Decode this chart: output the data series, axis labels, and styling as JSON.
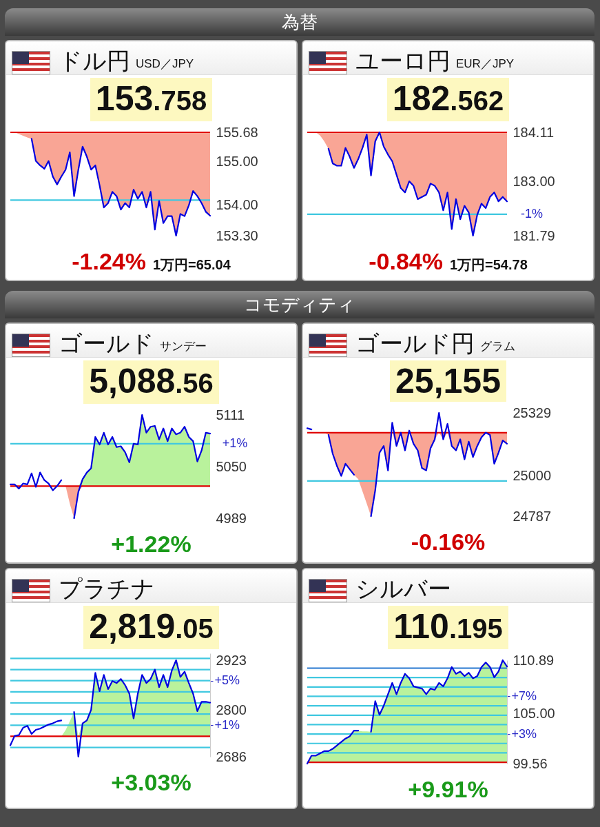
{
  "chart_data": [
    {
      "type": "other",
      "title": "為替"
    },
    {
      "type": "line",
      "title": "ドル円",
      "subtitle": "USD／JPY",
      "annotations": [
        "153.758",
        "-1.24%"
      ],
      "xlabel": "1万円=65.04",
      "categories": [
        null,
        null,
        null,
        null,
        null,
        null,
        null,
        null,
        null,
        null,
        null,
        null,
        null,
        null,
        null,
        null,
        null,
        null,
        null,
        null,
        null,
        null,
        null,
        null,
        null,
        null,
        null,
        null,
        null,
        null,
        null,
        null,
        null,
        null,
        null,
        null,
        null,
        null,
        null,
        null,
        null,
        null,
        null,
        null,
        null,
        null,
        null,
        null
      ],
      "series": [
        {
          "color": "#0000e0",
          "values": [
            null,
            null,
            null,
            null,
            null,
            155.53,
            155.02,
            154.92,
            154.84,
            155.02,
            154.66,
            154.48,
            154.66,
            154.82,
            155.22,
            154.21,
            154.82,
            155.35,
            155.12,
            154.82,
            154.92,
            154.46,
            153.95,
            154.05,
            154.31,
            154.21,
            153.9,
            154.05,
            153.95,
            154.36,
            154.15,
            154.31,
            153.95,
            154.31,
            153.44,
            154.1,
            153.59,
            153.75,
            153.75,
            153.3,
            153.8,
            153.75,
            154.0,
            154.33,
            154.21,
            154.05,
            153.85,
            153.76
          ],
          "lower": [
            155.68,
            155.68,
            155.64,
            155.6,
            155.56,
            155.53,
            155.02,
            154.92,
            154.84,
            155.02,
            154.66,
            154.48,
            154.66,
            154.82,
            155.22,
            154.21,
            154.82,
            155.35,
            155.12,
            154.82,
            154.92,
            154.46,
            153.95,
            154.05,
            154.31,
            154.21,
            153.9,
            154.05,
            153.95,
            154.36,
            154.15,
            154.31,
            153.95,
            154.31,
            153.44,
            154.1,
            153.59,
            153.75,
            153.75,
            153.3,
            153.8,
            153.75,
            154.0,
            154.33,
            154.21,
            154.05,
            153.85,
            153.76
          ],
          "upper": [
            155.68,
            155.68,
            155.68,
            155.68,
            155.68,
            155.68,
            155.68,
            155.68,
            155.68,
            155.68,
            155.68,
            155.68,
            155.68,
            155.68,
            155.68,
            155.68,
            155.68,
            155.68,
            155.68,
            155.68,
            155.68,
            155.68,
            155.68,
            155.68,
            155.68,
            155.68,
            155.68,
            155.68,
            155.68,
            155.68,
            155.68,
            155.68,
            155.68,
            155.68,
            155.68,
            155.68,
            155.68,
            155.68,
            155.68,
            155.68,
            155.68,
            155.68,
            155.68,
            155.68,
            155.68,
            155.68,
            155.68,
            155.68
          ]
        }
      ],
      "ylim": [
        153.3,
        155.68
      ],
      "yticks": [
        155.68,
        {
          "value": 155,
          "label": "155.00"
        },
        {
          "value": 154,
          "label": "154.00"
        },
        {
          "value": 153.3,
          "label": "153.30"
        }
      ],
      "ref_lines": [
        {
          "axis": "y",
          "value": 155.68,
          "color": "#e00000"
        },
        {
          "axis": "y",
          "value": 154.12,
          "color": "#40c8e0"
        }
      ]
    },
    {
      "type": "line",
      "title": "ユーロ円",
      "subtitle": "EUR／JPY",
      "annotations": [
        "182.562",
        "-0.84%",
        "-1%"
      ],
      "xlabel": "1万円=54.78",
      "categories": [
        null,
        null,
        null,
        null,
        null,
        null,
        null,
        null,
        null,
        null,
        null,
        null,
        null,
        null,
        null,
        null,
        null,
        null,
        null,
        null,
        null,
        null,
        null,
        null,
        null,
        null,
        null,
        null,
        null,
        null,
        null,
        null,
        null,
        null,
        null,
        null,
        null,
        null,
        null,
        null,
        null,
        null,
        null,
        null,
        null,
        null,
        null,
        null
      ],
      "series": [
        {
          "color": "#0000e0",
          "values": [
            null,
            null,
            null,
            null,
            null,
            183.74,
            183.41,
            183.36,
            183.36,
            183.76,
            183.56,
            183.31,
            183.51,
            183.76,
            184.06,
            183.14,
            183.91,
            184.11,
            183.79,
            183.61,
            183.46,
            183.16,
            182.86,
            182.76,
            183.01,
            182.91,
            182.61,
            182.66,
            182.71,
            182.96,
            182.91,
            182.76,
            182.36,
            182.76,
            181.94,
            182.61,
            182.16,
            182.46,
            182.31,
            181.79,
            182.26,
            182.51,
            182.41,
            182.66,
            182.76,
            182.56,
            182.66,
            182.56
          ],
          "lower": [
            184.11,
            184.11,
            184.11,
            184.04,
            183.91,
            183.74,
            183.41,
            183.36,
            183.36,
            183.76,
            183.56,
            183.31,
            183.51,
            183.76,
            184.06,
            183.14,
            183.91,
            184.11,
            183.79,
            183.61,
            183.46,
            183.16,
            182.86,
            182.76,
            183.01,
            182.91,
            182.61,
            182.66,
            182.71,
            182.96,
            182.91,
            182.76,
            182.36,
            182.76,
            181.94,
            182.61,
            182.16,
            182.46,
            182.31,
            181.79,
            182.26,
            182.51,
            182.41,
            182.66,
            182.76,
            182.56,
            182.66,
            182.56
          ],
          "upper": [
            184.11,
            184.11,
            184.11,
            184.11,
            184.11,
            184.11,
            184.11,
            184.11,
            184.11,
            184.11,
            184.11,
            184.11,
            184.11,
            184.11,
            184.11,
            184.11,
            184.11,
            184.11,
            184.11,
            184.11,
            184.11,
            184.11,
            184.11,
            184.11,
            184.11,
            184.11,
            184.11,
            184.11,
            184.11,
            184.11,
            184.11,
            184.11,
            184.11,
            184.11,
            184.11,
            184.11,
            184.11,
            184.11,
            184.11,
            184.11,
            184.11,
            184.11,
            184.11,
            184.11,
            184.11,
            184.11,
            184.11,
            184.11
          ]
        }
      ],
      "ylim": [
        181.79,
        184.11
      ],
      "yticks": [
        184.11,
        {
          "value": 183,
          "label": "183.00"
        },
        181.79
      ],
      "ref_lines": [
        {
          "axis": "y",
          "value": 184.11,
          "color": "#e00000"
        },
        {
          "axis": "y",
          "value": 182.27,
          "color": "#40c8e0"
        }
      ]
    },
    {
      "type": "other",
      "title": "コモディティ"
    },
    {
      "type": "line",
      "title": "ゴールド",
      "subtitle": "サンデー",
      "annotations": [
        "5,088.56",
        "+1.22%",
        "+1%"
      ],
      "categories": [
        null,
        null,
        null,
        null,
        null,
        null,
        null,
        null,
        null,
        null,
        null,
        null,
        null,
        null,
        null,
        null,
        null,
        null,
        null,
        null,
        null,
        null,
        null,
        null,
        null,
        null,
        null,
        null,
        null,
        null,
        null,
        null,
        null,
        null,
        null,
        null,
        null,
        null,
        null,
        null,
        null,
        null,
        null,
        null,
        null,
        null,
        null,
        null
      ],
      "series": [
        {
          "color": "#0000e0",
          "values": [
            5029,
            5029,
            5024,
            5030,
            5029,
            5042,
            5026,
            5043,
            5034,
            5030,
            5022,
            5027,
            5034,
            null,
            null,
            4989,
            5020,
            5035,
            5043,
            5048,
            5085,
            5076,
            5090,
            5076,
            5085,
            5073,
            5074,
            5067,
            5055,
            5077,
            5076,
            5111,
            5090,
            5097,
            5098,
            5082,
            5095,
            5080,
            5095,
            5088,
            5090,
            5097,
            5085,
            5080,
            5056,
            5069,
            5090,
            5089
          ],
          "lower": [
            5027,
            5027,
            5027,
            5027,
            5027,
            5027,
            5027,
            5027,
            5027,
            5027,
            5027,
            5027,
            5027,
            5027,
            5006,
            4989,
            5020,
            5027,
            5027,
            5027,
            5027,
            5027,
            5027,
            5027,
            5027,
            5027,
            5027,
            5027,
            5027,
            5027,
            5027,
            5027,
            5027,
            5027,
            5027,
            5027,
            5027,
            5027,
            5027,
            5027,
            5027,
            5027,
            5027,
            5027,
            5027,
            5027,
            5027,
            5027
          ],
          "upper": [
            5027,
            5027,
            5027,
            5027,
            5027,
            5027,
            5027,
            5027,
            5027,
            5027,
            5027,
            5027,
            5027,
            5027,
            5027,
            5027,
            5027,
            5035,
            5043,
            5048,
            5085,
            5076,
            5090,
            5076,
            5085,
            5073,
            5074,
            5067,
            5055,
            5077,
            5076,
            5111,
            5090,
            5097,
            5098,
            5082,
            5095,
            5080,
            5095,
            5088,
            5090,
            5097,
            5085,
            5080,
            5056,
            5069,
            5090,
            5089
          ]
        }
      ],
      "ylim": [
        4989,
        5111
      ],
      "yticks": [
        5111,
        5050,
        4989
      ],
      "ref_lines": [
        {
          "axis": "y",
          "value": 5027,
          "color": "#e00000"
        },
        {
          "axis": "y",
          "value": 5077,
          "color": "#40c8e0"
        }
      ]
    },
    {
      "type": "line",
      "title": "ゴールド円",
      "subtitle": "グラム",
      "annotations": [
        "25,155",
        "-0.16%"
      ],
      "categories": [
        null,
        null,
        null,
        null,
        null,
        null,
        null,
        null,
        null,
        null,
        null,
        null,
        null,
        null,
        null,
        null,
        null,
        null,
        null,
        null,
        null,
        null,
        null,
        null,
        null,
        null,
        null,
        null,
        null,
        null,
        null,
        null,
        null,
        null,
        null,
        null,
        null,
        null,
        null,
        null,
        null,
        null,
        null,
        null,
        null,
        null,
        null,
        null
      ],
      "series": [
        {
          "color": "#0000e0",
          "values": [
            25248,
            25242,
            null,
            null,
            null,
            25213,
            25114,
            25050,
            24998,
            25062,
            25033,
            25004,
            null,
            null,
            null,
            24787,
            24923,
            25120,
            25155,
            25027,
            25277,
            25155,
            25225,
            25132,
            25236,
            25167,
            25132,
            25039,
            25027,
            25143,
            25190,
            25329,
            25190,
            25271,
            25155,
            25132,
            25190,
            25085,
            25178,
            25097,
            25155,
            25201,
            25225,
            25213,
            25062,
            25120,
            25184,
            25167
          ],
          "lower": [
            25225,
            25225,
            25225,
            25225,
            25225,
            25213,
            25114,
            25050,
            24998,
            25062,
            25033,
            25004,
            24981,
            24917,
            24853,
            24787,
            24923,
            25120,
            25155,
            25027,
            25225,
            25155,
            25225,
            25132,
            25225,
            25167,
            25132,
            25039,
            25027,
            25143,
            25190,
            25225,
            25190,
            25225,
            25155,
            25132,
            25190,
            25085,
            25178,
            25097,
            25155,
            25201,
            25225,
            25213,
            25062,
            25120,
            25184,
            25167
          ],
          "upper": [
            25225,
            25225,
            25225,
            25225,
            25225,
            25225,
            25225,
            25225,
            25225,
            25225,
            25225,
            25225,
            25225,
            25225,
            25225,
            25225,
            25225,
            25225,
            25225,
            25225,
            25225,
            25225,
            25225,
            25225,
            25225,
            25225,
            25225,
            25225,
            25225,
            25225,
            25225,
            25225,
            25225,
            25225,
            25225,
            25225,
            25225,
            25225,
            25225,
            25225,
            25225,
            25225,
            25225,
            25225,
            25225,
            25225,
            25225,
            25225
          ]
        }
      ],
      "ylim": [
        24787,
        25329
      ],
      "yticks": [
        25329,
        25000,
        24787
      ],
      "ref_lines": [
        {
          "axis": "y",
          "value": 25225,
          "color": "#e00000"
        },
        {
          "axis": "y",
          "value": 24972,
          "color": "#40c8e0"
        }
      ]
    },
    {
      "type": "line",
      "title": "プラチナ",
      "annotations": [
        "2,819.05",
        "+3.03%"
      ],
      "categories": [
        null,
        null,
        null,
        null,
        null,
        null,
        null,
        null,
        null,
        null,
        null,
        null,
        null,
        null,
        null,
        null,
        null,
        null,
        null,
        null,
        null,
        null,
        null,
        null,
        null,
        null,
        null,
        null,
        null,
        null,
        null,
        null,
        null,
        null,
        null,
        null,
        null,
        null,
        null,
        null,
        null,
        null,
        null,
        null,
        null,
        null,
        null,
        null
      ],
      "series": [
        {
          "color": "#0000e0",
          "values": [
            2714,
            2737,
            2739,
            2757,
            2762,
            2742,
            2752,
            2755,
            2760,
            2765,
            2768,
            2773,
            2775,
            null,
            null,
            2796,
            2686,
            2768,
            2775,
            2801,
            2892,
            2847,
            2887,
            2852,
            2872,
            2867,
            2877,
            2862,
            2841,
            2780,
            2841,
            2887,
            2867,
            2877,
            2900,
            2857,
            2887,
            2857,
            2898,
            2923,
            2882,
            2895,
            2867,
            2841,
            2798,
            2821,
            2821,
            2819
          ],
          "lower": [
            2736,
            2736,
            2736,
            2736,
            2736,
            2736,
            2736,
            2736,
            2736,
            2736,
            2736,
            2736,
            2736,
            2736,
            2736,
            2736,
            2736,
            2736,
            2736,
            2736,
            2736,
            2736,
            2736,
            2736,
            2736,
            2736,
            2736,
            2736,
            2736,
            2736,
            2736,
            2736,
            2736,
            2736,
            2736,
            2736,
            2736,
            2736,
            2736,
            2736,
            2736,
            2736,
            2736,
            2736,
            2736,
            2736,
            2736,
            2736
          ],
          "upper": [
            2736,
            2736,
            2736,
            2736,
            2736,
            2736,
            2736,
            2736,
            2736,
            2736,
            2736,
            2736,
            2736,
            2751,
            2773,
            2796,
            2736,
            2768,
            2775,
            2801,
            2892,
            2847,
            2887,
            2852,
            2872,
            2867,
            2877,
            2862,
            2841,
            2780,
            2841,
            2887,
            2867,
            2877,
            2900,
            2857,
            2887,
            2857,
            2898,
            2923,
            2882,
            2895,
            2867,
            2841,
            2798,
            2821,
            2821,
            2819
          ]
        }
      ],
      "ylim": [
        2686,
        2940
      ],
      "yticks": [
        2923,
        2800,
        2686
      ],
      "y2lim": [
        -1.83,
        7.46
      ],
      "y2ticks": [
        {
          "value": 5,
          "label": "+5%"
        },
        {
          "value": 1,
          "label": "+1%"
        }
      ],
      "ref_lines": [
        {
          "axis": "y",
          "value": 2736,
          "color": "#e00000"
        },
        {
          "axis": "y2",
          "value": -1,
          "color": "#40c8e0"
        },
        {
          "axis": "y2",
          "value": 1,
          "color": "#40c8e0"
        },
        {
          "axis": "y2",
          "value": 2,
          "color": "#40c8e0"
        },
        {
          "axis": "y2",
          "value": 3,
          "color": "#40c8e0"
        },
        {
          "axis": "y2",
          "value": 4,
          "color": "#40c8e0"
        },
        {
          "axis": "y2",
          "value": 5,
          "color": "#40c8e0"
        },
        {
          "axis": "y2",
          "value": 6,
          "color": "#40c8e0"
        },
        {
          "axis": "y2",
          "value": 7,
          "color": "#40c8e0"
        }
      ]
    },
    {
      "type": "line",
      "title": "シルバー",
      "annotations": [
        "110.195",
        "+9.91%"
      ],
      "categories": [
        null,
        null,
        null,
        null,
        null,
        null,
        null,
        null,
        null,
        null,
        null,
        null,
        null,
        null,
        null,
        null,
        null,
        null,
        null,
        null,
        null,
        null,
        null,
        null,
        null,
        null,
        null,
        null,
        null,
        null,
        null,
        null,
        null,
        null,
        null,
        null,
        null,
        null,
        null,
        null,
        null,
        null,
        null,
        null,
        null,
        null,
        null,
        null
      ],
      "series": [
        {
          "color": "#0000e0",
          "values": [
            99.56,
            100.43,
            100.43,
            100.68,
            100.93,
            100.93,
            101.18,
            101.55,
            101.93,
            102.3,
            102.55,
            103.17,
            103.17,
            null,
            null,
            103.05,
            106.41,
            104.91,
            105.91,
            107.16,
            108.4,
            107.16,
            108.4,
            109.4,
            108.9,
            108.03,
            107.9,
            107.78,
            107.16,
            107.78,
            107.65,
            108.4,
            108.03,
            108.9,
            110.14,
            109.4,
            109.65,
            109.15,
            109.52,
            108.9,
            109.15,
            110.14,
            110.64,
            110.14,
            109.02,
            109.65,
            110.89,
            110.2
          ],
          "lower": [
            99.7,
            99.7,
            99.7,
            99.7,
            99.7,
            99.7,
            99.7,
            99.7,
            99.7,
            99.7,
            99.7,
            99.7,
            99.7,
            99.7,
            99.7,
            99.7,
            99.7,
            99.7,
            99.7,
            99.7,
            99.7,
            99.7,
            99.7,
            99.7,
            99.7,
            99.7,
            99.7,
            99.7,
            99.7,
            99.7,
            99.7,
            99.7,
            99.7,
            99.7,
            99.7,
            99.7,
            99.7,
            99.7,
            99.7,
            99.7,
            99.7,
            99.7,
            99.7,
            99.7,
            99.7,
            99.7,
            99.7,
            99.7
          ],
          "upper": [
            99.7,
            100.43,
            100.43,
            100.68,
            100.93,
            100.93,
            101.18,
            101.55,
            101.93,
            102.3,
            102.55,
            103.17,
            103.17,
            103.1,
            103.1,
            103.05,
            106.41,
            104.91,
            105.91,
            107.16,
            108.4,
            107.16,
            108.4,
            109.4,
            108.9,
            108.03,
            107.9,
            107.78,
            107.16,
            107.78,
            107.65,
            108.4,
            108.03,
            108.9,
            110.14,
            109.4,
            109.65,
            109.15,
            109.52,
            108.9,
            109.15,
            110.14,
            110.64,
            110.14,
            109.02,
            109.65,
            110.89,
            110.2
          ]
        }
      ],
      "ylim": [
        99.56,
        110.89
      ],
      "yticks": [
        110.89,
        {
          "value": 105,
          "label": "105.00"
        },
        99.56
      ],
      "y2lim": [
        -0.14,
        10.84
      ],
      "y2ticks": [
        {
          "value": 7,
          "label": "+7%"
        },
        {
          "value": 3,
          "label": "+3%"
        }
      ],
      "ref_lines": [
        {
          "axis": "y",
          "value": 99.7,
          "color": "#e00000"
        },
        {
          "axis": "y2",
          "value": 1,
          "color": "#40c8e0"
        },
        {
          "axis": "y2",
          "value": 2,
          "color": "#40c8e0"
        },
        {
          "axis": "y2",
          "value": 3,
          "color": "#40c8e0"
        },
        {
          "axis": "y2",
          "value": 4,
          "color": "#40c8e0"
        },
        {
          "axis": "y2",
          "value": 5,
          "color": "#40c8e0"
        },
        {
          "axis": "y2",
          "value": 6,
          "color": "#40c8e0"
        },
        {
          "axis": "y2",
          "value": 7,
          "color": "#40c8e0"
        },
        {
          "axis": "y2",
          "value": 8,
          "color": "#40c8e0"
        },
        {
          "axis": "y2",
          "value": 9,
          "color": "#40c8e0"
        },
        {
          "axis": "y2",
          "value": 10,
          "color": "#2878d0"
        }
      ]
    }
  ]
}
